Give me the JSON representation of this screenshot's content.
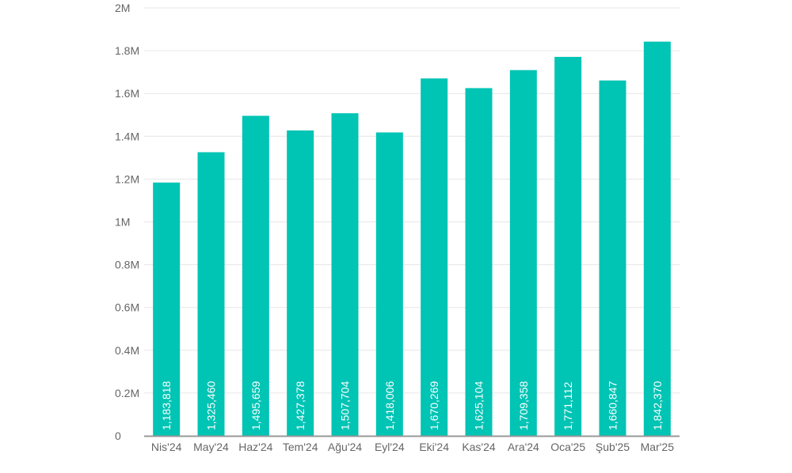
{
  "chart_data": {
    "type": "bar",
    "categories": [
      "Nis'24",
      "May'24",
      "Haz'24",
      "Tem'24",
      "Ağu'24",
      "Eyl'24",
      "Eki'24",
      "Kas'24",
      "Ara'24",
      "Oca'25",
      "Şub'25",
      "Mar'25"
    ],
    "values": [
      1183818,
      1325460,
      1495659,
      1427378,
      1507704,
      1418006,
      1670269,
      1625104,
      1709358,
      1771112,
      1660847,
      1842370
    ],
    "data_labels": [
      "1,183,818",
      "1,325,460",
      "1,495,659",
      "1,427,378",
      "1,507,704",
      "1,418,006",
      "1,670,269",
      "1,625,104",
      "1,709,358",
      "1,771,112",
      "1,660,847",
      "1,842,370"
    ],
    "y_ticks": [
      0,
      200000,
      400000,
      600000,
      800000,
      1000000,
      1200000,
      1400000,
      1600000,
      1800000,
      2000000
    ],
    "y_tick_labels": [
      "0",
      "0.2M",
      "0.4M",
      "0.6M",
      "0.8M",
      "1M",
      "1.2M",
      "1.4M",
      "1.6M",
      "1.8M",
      "2M"
    ],
    "ylim": [
      0,
      2000000
    ],
    "grid": true,
    "bar_color": "#00c4b4",
    "title": "",
    "xlabel": "",
    "ylabel": ""
  }
}
